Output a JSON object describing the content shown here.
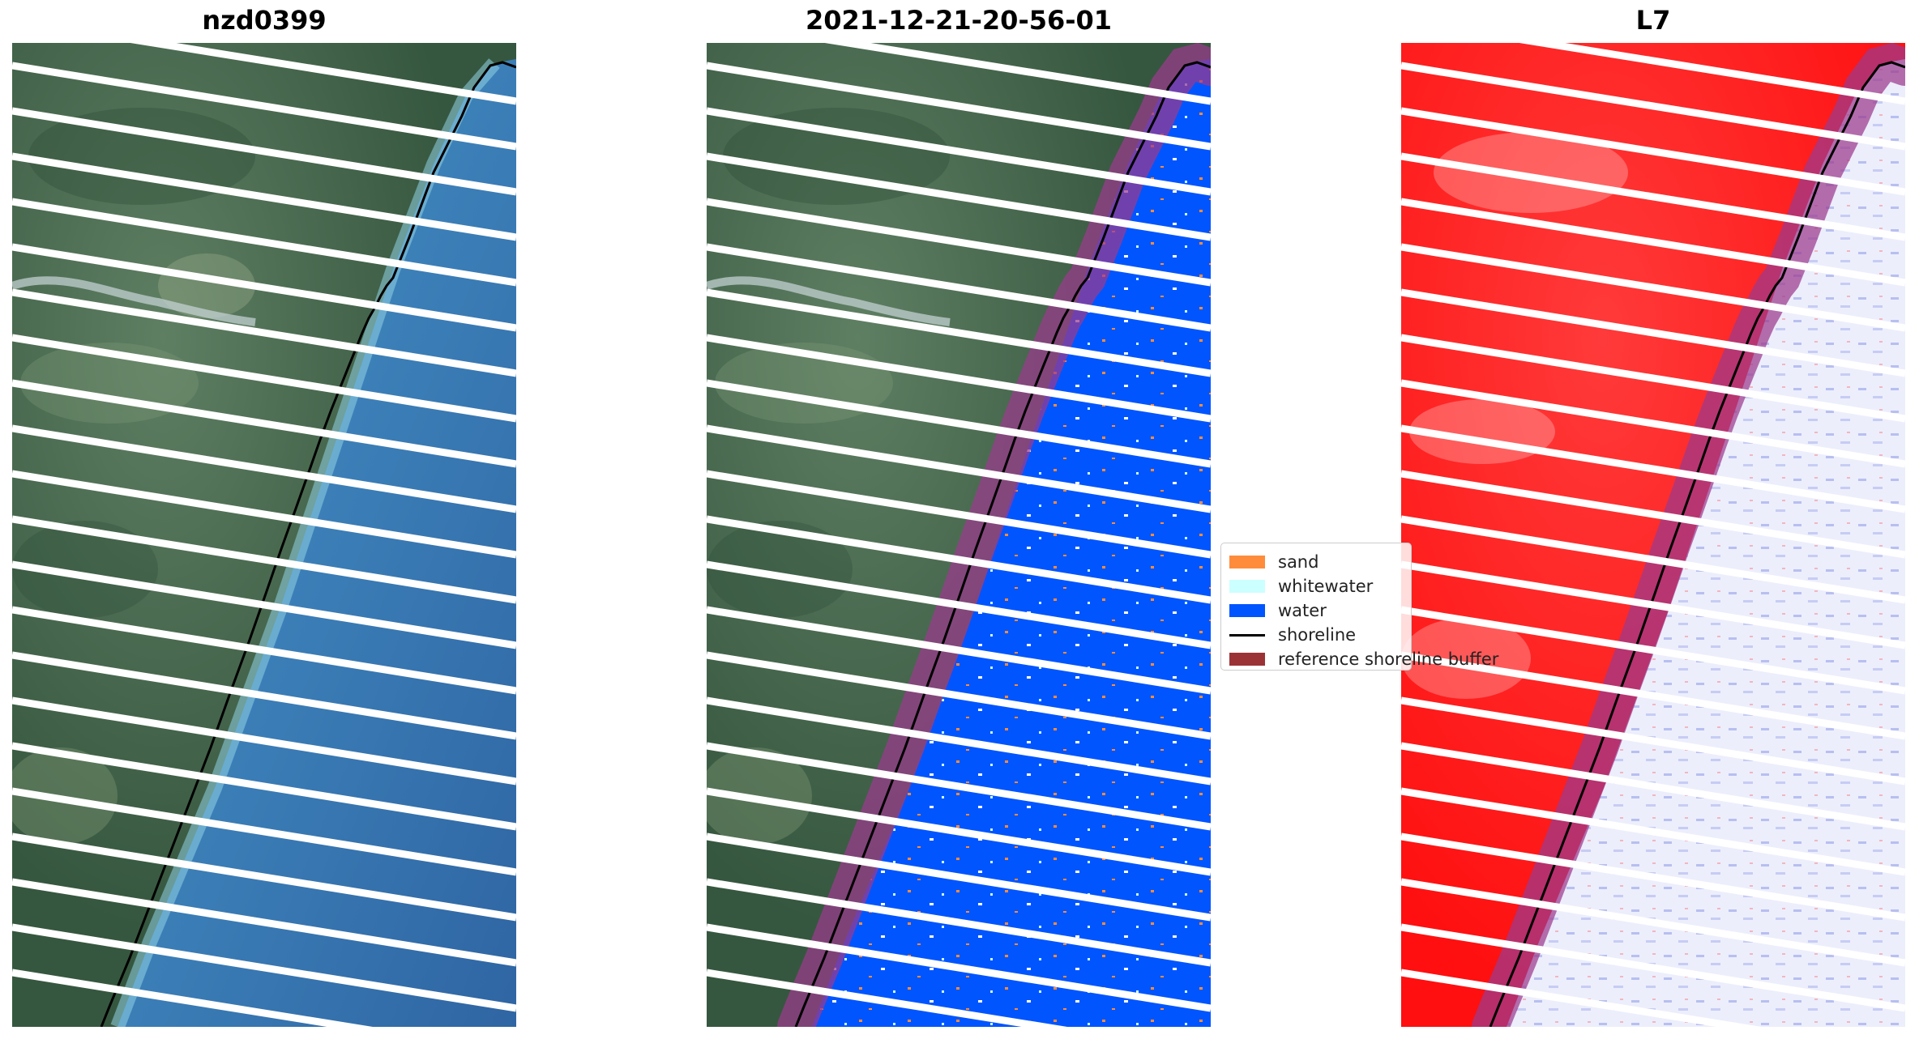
{
  "panels": [
    {
      "id": "rgb",
      "title": "nzd0399"
    },
    {
      "id": "classified",
      "title": "2021-12-21-20-56-01"
    },
    {
      "id": "index",
      "title": "L7"
    }
  ],
  "legend": {
    "items": [
      {
        "label": "sand",
        "color": "#ff8c3a"
      },
      {
        "label": "whitewater",
        "color": "#ccffff"
      },
      {
        "label": "water",
        "color": "#0055ff"
      },
      {
        "label": "shoreline",
        "color": "#000000"
      },
      {
        "label": "reference shoreline buffer",
        "color": "#9b3336"
      }
    ]
  },
  "colors": {
    "land": "#4a6e55",
    "ocean": "#3f78ae",
    "classified_water": "#0055ff",
    "buffer": "#9b3a8e",
    "index_land": "#ff1a1a",
    "index_water": "#e4e6fb",
    "stripe": "#ffffff"
  }
}
